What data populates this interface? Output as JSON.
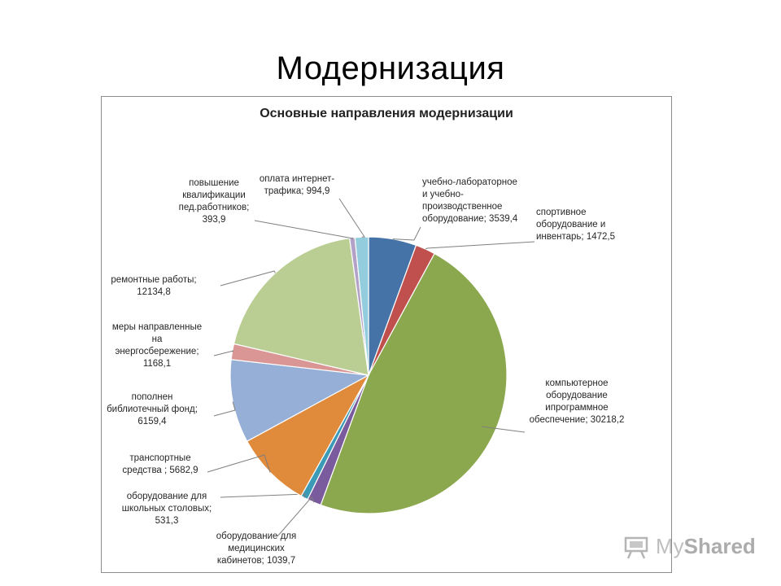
{
  "slide": {
    "title": "Модернизация"
  },
  "watermark": {
    "prefix": "My",
    "suffix": "Shared",
    "icon": "projector-board-icon"
  },
  "chart_data": {
    "type": "pie",
    "title": "Основные направления модернизации",
    "start_angle_deg": 0,
    "direction": "clockwise",
    "slices": [
      {
        "label": [
          "учебно-лабораторное",
          "и учебно-",
          "производственное",
          "оборудование; 3539,4"
        ],
        "value": 3539.4,
        "color": "#4572A7"
      },
      {
        "label": [
          "спортивное",
          "оборудование и",
          "инвентарь; 1472,5"
        ],
        "value": 1472.5,
        "color": "#C0504D"
      },
      {
        "label": [
          "компьютерное",
          "оборудование",
          "ипрограммное",
          "обеспечение; 30218,2"
        ],
        "value": 30218.2,
        "color": "#8BA84E"
      },
      {
        "label": [
          "оборудование для",
          "медицинских",
          "кабинетов; 1039,7"
        ],
        "value": 1039.7,
        "color": "#7A5C9E"
      },
      {
        "label": [
          "оборудование для",
          "школьных столовых;",
          "531,3"
        ],
        "value": 531.3,
        "color": "#3B9AB5"
      },
      {
        "label": [
          "транспортные",
          "средства ; 5682,9"
        ],
        "value": 5682.9,
        "color": "#E08A3C"
      },
      {
        "label": [
          "пополнен",
          "библиотечный фонд;",
          "6159,4"
        ],
        "value": 6159.4,
        "color": "#95AFD6"
      },
      {
        "label": [
          "меры направленные",
          "на",
          "энергосбережение;",
          "1168,1"
        ],
        "value": 1168.1,
        "color": "#D99694"
      },
      {
        "label": [
          "ремонтные работы;",
          "12134,8"
        ],
        "value": 12134.8,
        "color": "#BACE94"
      },
      {
        "label": [
          "повышение",
          "квалификации",
          "пед.работников;",
          "393,9"
        ],
        "value": 393.9,
        "color": "#B3A2C7"
      },
      {
        "label": [
          "оплата интернет-",
          "трафика; 994,9"
        ],
        "value": 994.9,
        "color": "#93CDDD"
      }
    ]
  }
}
